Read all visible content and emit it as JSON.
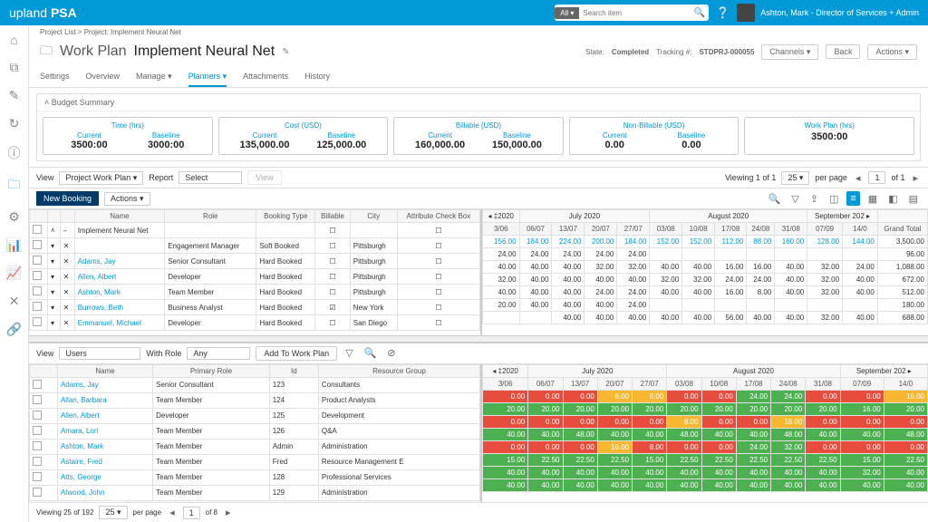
{
  "header": {
    "logo_a": "upland",
    "logo_b": "PSA",
    "search_all": "All ▾",
    "search_ph": "Search item",
    "user": "Ashton, Mark - Director of Services + Admin"
  },
  "crumb": "Project List > Project: Implement Neural Net",
  "title": {
    "wp": "Work Plan",
    "name": "Implement Neural Net"
  },
  "meta": {
    "state_l": "State:",
    "state_v": "Completed",
    "track_l": "Tracking #:",
    "track_v": "STDPRJ-000055",
    "channels": "Channels ▾",
    "back": "Back",
    "actions": "Actions ▾"
  },
  "tabs": [
    "Settings",
    "Overview",
    "Manage ▾",
    "Planners ▾",
    "Attachments",
    "History"
  ],
  "active_tab": "Planners ▾",
  "budget": {
    "hdr": "˄  Budget Summary",
    "cards": [
      {
        "t": "Time (hrs)",
        "cols": [
          {
            "h": "Current",
            "v": "3500:00"
          },
          {
            "h": "Baseline",
            "v": "3000:00"
          }
        ]
      },
      {
        "t": "Cost (USD)",
        "cols": [
          {
            "h": "Current",
            "v": "135,000.00"
          },
          {
            "h": "Baseline",
            "v": "125,000.00"
          }
        ]
      },
      {
        "t": "Billable (USD)",
        "cols": [
          {
            "h": "Current",
            "v": "160,000.00"
          },
          {
            "h": "Baseline",
            "v": "150,000.00"
          }
        ]
      },
      {
        "t": "Non-Billable (USD)",
        "cols": [
          {
            "h": "Current",
            "v": "0.00"
          },
          {
            "h": "Baseline",
            "v": "0.00"
          }
        ]
      },
      {
        "t": "Work Plan (hrs)",
        "cols": [
          {
            "h": "",
            "v": "3500:00"
          }
        ]
      }
    ]
  },
  "tb1": {
    "view_l": "View",
    "view_v": "Project Work Plan ▾",
    "report_l": "Report",
    "report_v": "Select",
    "viewing": "Viewing 1 of 1",
    "perpage": "25 ▾",
    "pp": "per page",
    "of": "of 1"
  },
  "tb2": {
    "new": "New Booking",
    "actions": "Actions ▾"
  },
  "top_left_cols": [
    "",
    "",
    "",
    "Name",
    "Role",
    "Booking Type",
    "Billable",
    "City",
    "Attribute Check Box"
  ],
  "top_rows": [
    {
      "name": "Implement Neural Net",
      "role": "",
      "bt": "",
      "bill": "",
      "city": "",
      "acb": "",
      "tree": true
    },
    {
      "name": "",
      "role": "Engagement Manager",
      "bt": "Soft Booked",
      "bill": "",
      "city": "Pittsburgh",
      "acb": ""
    },
    {
      "name": "Adams, Jay",
      "role": "Senior Consultant",
      "bt": "Hard Booked",
      "bill": "",
      "city": "Pittsburgh",
      "acb": ""
    },
    {
      "name": "Allen, Albert",
      "role": "Developer",
      "bt": "Hard Booked",
      "bill": "",
      "city": "Pittsburgh",
      "acb": ""
    },
    {
      "name": "Ashton, Mark",
      "role": "Team Member",
      "bt": "Hard Booked",
      "bill": "",
      "city": "Pittsburgh",
      "acb": ""
    },
    {
      "name": "Burrows, Beth",
      "role": "Business Analyst",
      "bt": "Hard Booked",
      "bill": "✓",
      "city": "New York",
      "acb": ""
    },
    {
      "name": "Emmanuel, Michael",
      "role": "Developer",
      "bt": "Hard Booked",
      "bill": "",
      "city": "San Diego",
      "acb": ""
    }
  ],
  "top_months": [
    "◂ ‡2020",
    "July 2020",
    "August 2020",
    "September 202 ▸"
  ],
  "top_days": [
    "3/06",
    "06/07",
    "13/07",
    "20/07",
    "27/07",
    "03/08",
    "10/08",
    "17/08",
    "24/08",
    "31/08",
    "07/09",
    "14/0"
  ],
  "top_gt": "Grand Total",
  "top_right": [
    [
      "156.00",
      "184.00",
      "224.00",
      "200.00",
      "184.00",
      "152.00",
      "152.00",
      "112.00",
      "88.00",
      "160.00",
      "128.00",
      "144.00",
      "3,500.00"
    ],
    [
      "24.00",
      "24.00",
      "24.00",
      "24.00",
      "24.00",
      "",
      "",
      "",
      "",
      "",
      "",
      "",
      "96.00"
    ],
    [
      "40.00",
      "40.00",
      "40.00",
      "32.00",
      "32.00",
      "40.00",
      "40.00",
      "16.00",
      "16.00",
      "40.00",
      "32.00",
      "24.00",
      "1,088.00"
    ],
    [
      "32.00",
      "40.00",
      "40.00",
      "40.00",
      "40.00",
      "32.00",
      "32.00",
      "24.00",
      "24.00",
      "40.00",
      "32.00",
      "40.00",
      "672.00"
    ],
    [
      "40.00",
      "40.00",
      "40.00",
      "24.00",
      "24.00",
      "40.00",
      "40.00",
      "16.00",
      "8.00",
      "40.00",
      "32.00",
      "40.00",
      "512.00"
    ],
    [
      "20.00",
      "40.00",
      "40.00",
      "40.00",
      "24.00",
      "",
      "",
      "",
      "",
      "",
      "",
      "",
      "180.00"
    ],
    [
      "",
      "",
      "40.00",
      "40.00",
      "40.00",
      "40.00",
      "40.00",
      "56.00",
      "40.00",
      "40.00",
      "32.00",
      "40.00",
      "688.00"
    ]
  ],
  "ut": {
    "view_l": "View",
    "view_v": "Users",
    "role_l": "With Role",
    "role_v": "Any",
    "add": "Add To Work Plan"
  },
  "bot_left_cols": [
    "",
    "Name",
    "Primary Role",
    "Id",
    "Resource Group"
  ],
  "bot_rows": [
    {
      "name": "Adams, Jay",
      "role": "Senior Consultant",
      "id": "123",
      "rg": "Consultants"
    },
    {
      "name": "Allan, Barbara",
      "role": "Team Member",
      "id": "124",
      "rg": "Product Analysts"
    },
    {
      "name": "Allen, Albert",
      "role": "Developer",
      "id": "125",
      "rg": "Development"
    },
    {
      "name": "Amara, Lori",
      "role": "Team Member",
      "id": "126",
      "rg": "Q&A"
    },
    {
      "name": "Ashton, Mark",
      "role": "Team Member",
      "id": "Admin",
      "rg": "Administration"
    },
    {
      "name": "Astaire, Fred",
      "role": "Team Member",
      "id": "Fred",
      "rg": "Resource Management E"
    },
    {
      "name": "Atts, George",
      "role": "Team Member",
      "id": "128",
      "rg": "Professional Services"
    },
    {
      "name": "Atwood, John",
      "role": "Team Member",
      "id": "129",
      "rg": "Administration"
    }
  ],
  "bot_days": [
    "3/06",
    "06/07",
    "13/07",
    "20/07",
    "27/07",
    "03/08",
    "10/08",
    "17/08",
    "24/08",
    "31/08",
    "07/09",
    "14/0"
  ],
  "bot_right": [
    [
      {
        "v": "0.00",
        "c": "r"
      },
      {
        "v": "0.00",
        "c": "r"
      },
      {
        "v": "0.00",
        "c": "r"
      },
      {
        "v": "8.00",
        "c": "y"
      },
      {
        "v": "8.00",
        "c": "y"
      },
      {
        "v": "0.00",
        "c": "r"
      },
      {
        "v": "0.00",
        "c": "r"
      },
      {
        "v": "24.00",
        "c": "g"
      },
      {
        "v": "24.00",
        "c": "g"
      },
      {
        "v": "0.00",
        "c": "r"
      },
      {
        "v": "0.00",
        "c": "r"
      },
      {
        "v": "16.00",
        "c": "y"
      }
    ],
    [
      {
        "v": "20.00",
        "c": "g"
      },
      {
        "v": "20.00",
        "c": "g"
      },
      {
        "v": "20.00",
        "c": "g"
      },
      {
        "v": "20.00",
        "c": "g"
      },
      {
        "v": "20.00",
        "c": "g"
      },
      {
        "v": "20.00",
        "c": "g"
      },
      {
        "v": "20.00",
        "c": "g"
      },
      {
        "v": "20.00",
        "c": "g"
      },
      {
        "v": "20.00",
        "c": "g"
      },
      {
        "v": "20.00",
        "c": "g"
      },
      {
        "v": "16.00",
        "c": "g"
      },
      {
        "v": "20.00",
        "c": "g"
      }
    ],
    [
      {
        "v": "0.00",
        "c": "r"
      },
      {
        "v": "0.00",
        "c": "r"
      },
      {
        "v": "0.00",
        "c": "r"
      },
      {
        "v": "0.00",
        "c": "r"
      },
      {
        "v": "0.00",
        "c": "r"
      },
      {
        "v": "8.00",
        "c": "y"
      },
      {
        "v": "0.00",
        "c": "r"
      },
      {
        "v": "0.00",
        "c": "r"
      },
      {
        "v": "16.00",
        "c": "y"
      },
      {
        "v": "0.00",
        "c": "r"
      },
      {
        "v": "0.00",
        "c": "r"
      },
      {
        "v": "0.00",
        "c": "r"
      }
    ],
    [
      {
        "v": "40.00",
        "c": "g"
      },
      {
        "v": "40.00",
        "c": "g"
      },
      {
        "v": "48.00",
        "c": "g"
      },
      {
        "v": "40.00",
        "c": "g"
      },
      {
        "v": "40.00",
        "c": "g"
      },
      {
        "v": "48.00",
        "c": "g"
      },
      {
        "v": "40.00",
        "c": "g"
      },
      {
        "v": "40.00",
        "c": "g"
      },
      {
        "v": "48.00",
        "c": "g"
      },
      {
        "v": "40.00",
        "c": "g"
      },
      {
        "v": "40.00",
        "c": "g"
      },
      {
        "v": "48.00",
        "c": "g"
      }
    ],
    [
      {
        "v": "0.00",
        "c": "r"
      },
      {
        "v": "0.00",
        "c": "r"
      },
      {
        "v": "0.00",
        "c": "r"
      },
      {
        "v": "16.00",
        "c": "y"
      },
      {
        "v": "8.00",
        "c": "r"
      },
      {
        "v": "0.00",
        "c": "r"
      },
      {
        "v": "0.00",
        "c": "r"
      },
      {
        "v": "24.00",
        "c": "g"
      },
      {
        "v": "32.00",
        "c": "g"
      },
      {
        "v": "0.00",
        "c": "r"
      },
      {
        "v": "0.00",
        "c": "r"
      },
      {
        "v": "0.00",
        "c": "r"
      }
    ],
    [
      {
        "v": "15.00",
        "c": "g"
      },
      {
        "v": "22.50",
        "c": "g"
      },
      {
        "v": "22.50",
        "c": "g"
      },
      {
        "v": "22.50",
        "c": "g"
      },
      {
        "v": "15.00",
        "c": "g"
      },
      {
        "v": "22.50",
        "c": "g"
      },
      {
        "v": "22.50",
        "c": "g"
      },
      {
        "v": "22.50",
        "c": "g"
      },
      {
        "v": "22.50",
        "c": "g"
      },
      {
        "v": "22.50",
        "c": "g"
      },
      {
        "v": "15.00",
        "c": "g"
      },
      {
        "v": "22.50",
        "c": "g"
      }
    ],
    [
      {
        "v": "40.00",
        "c": "g"
      },
      {
        "v": "40.00",
        "c": "g"
      },
      {
        "v": "40.00",
        "c": "g"
      },
      {
        "v": "40.00",
        "c": "g"
      },
      {
        "v": "40.00",
        "c": "g"
      },
      {
        "v": "40.00",
        "c": "g"
      },
      {
        "v": "40.00",
        "c": "g"
      },
      {
        "v": "40.00",
        "c": "g"
      },
      {
        "v": "40.00",
        "c": "g"
      },
      {
        "v": "40.00",
        "c": "g"
      },
      {
        "v": "32.00",
        "c": "g"
      },
      {
        "v": "40.00",
        "c": "g"
      }
    ],
    [
      {
        "v": "40.00",
        "c": "g"
      },
      {
        "v": "40.00",
        "c": "g"
      },
      {
        "v": "40.00",
        "c": "g"
      },
      {
        "v": "40.00",
        "c": "g"
      },
      {
        "v": "40.00",
        "c": "g"
      },
      {
        "v": "40.00",
        "c": "g"
      },
      {
        "v": "40.00",
        "c": "g"
      },
      {
        "v": "40.00",
        "c": "g"
      },
      {
        "v": "40.00",
        "c": "g"
      },
      {
        "v": "40.00",
        "c": "g"
      },
      {
        "v": "40.00",
        "c": "g"
      },
      {
        "v": "40.00",
        "c": "g"
      }
    ]
  ],
  "paging": {
    "viewing": "Viewing 25 of 192",
    "pp": "25 ▾",
    "ppl": "per page",
    "of": "of 8"
  }
}
